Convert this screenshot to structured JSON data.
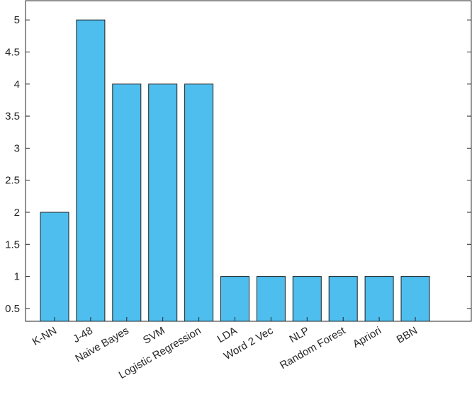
{
  "chart_data": {
    "type": "bar",
    "categories": [
      "K-NN",
      "J-48",
      "Naive Bayes",
      "SVM",
      "Logistic Regression",
      "LDA",
      "Word 2 Vec",
      "NLP",
      "Random Forest",
      "Apriori",
      "BBN"
    ],
    "values": [
      2,
      5,
      4,
      4,
      4,
      1,
      1,
      1,
      1,
      1,
      1
    ],
    "color": "#4dbeee",
    "ylim": [
      0.3,
      5.3
    ],
    "yticks": [
      0.5,
      1,
      1.5,
      2,
      2.5,
      3,
      3.5,
      4,
      4.5,
      5
    ]
  }
}
